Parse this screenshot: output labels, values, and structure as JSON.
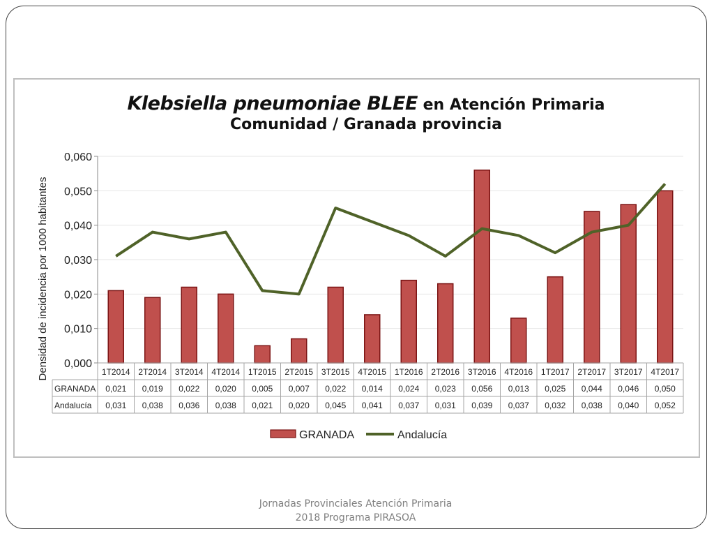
{
  "footer": {
    "line1": "Jornadas Provinciales Atención Primaria",
    "line2": "2018  Programa PIRASOA"
  },
  "colors": {
    "bar_fill": "#c0504d",
    "bar_stroke": "#7b1414",
    "line": "#4f6228",
    "grid": "#e6e6e6",
    "table_border": "#a6a6a6"
  },
  "chart_data": {
    "type": "bar",
    "title_italic": "Klebsiella pneumoniae BLEE",
    "title_rest": " en Atención Primaria",
    "subtitle": "Comunidad / Granada provincia",
    "ylabel": "Densidad de incidencia por 1000 habitantes",
    "ylim": [
      0,
      0.06
    ],
    "yticks": [
      "0,000",
      "0,010",
      "0,020",
      "0,030",
      "0,040",
      "0,050",
      "0,060"
    ],
    "grid": true,
    "legend_position": "bottom",
    "categories": [
      "1T2014",
      "2T2014",
      "3T2014",
      "4T2014",
      "1T2015",
      "2T2015",
      "3T2015",
      "4T2015",
      "1T2016",
      "2T2016",
      "3T2016",
      "4T2016",
      "1T2017",
      "2T2017",
      "3T2017",
      "4T2017"
    ],
    "series": [
      {
        "name": "GRANADA",
        "type": "bar",
        "values": [
          0.021,
          0.019,
          0.022,
          0.02,
          0.005,
          0.007,
          0.022,
          0.014,
          0.024,
          0.023,
          0.056,
          0.013,
          0.025,
          0.044,
          0.046,
          0.05
        ],
        "labels": [
          "0,021",
          "0,019",
          "0,022",
          "0,020",
          "0,005",
          "0,007",
          "0,022",
          "0,014",
          "0,024",
          "0,023",
          "0,056",
          "0,013",
          "0,025",
          "0,044",
          "0,046",
          "0,050"
        ]
      },
      {
        "name": "Andalucía",
        "type": "line",
        "values": [
          0.031,
          0.038,
          0.036,
          0.038,
          0.021,
          0.02,
          0.045,
          0.041,
          0.037,
          0.031,
          0.039,
          0.037,
          0.032,
          0.038,
          0.04,
          0.052
        ],
        "labels": [
          "0,031",
          "0,038",
          "0,036",
          "0,038",
          "0,021",
          "0,020",
          "0,045",
          "0,041",
          "0,037",
          "0,031",
          "0,039",
          "0,037",
          "0,032",
          "0,038",
          "0,040",
          "0,052"
        ]
      }
    ]
  }
}
